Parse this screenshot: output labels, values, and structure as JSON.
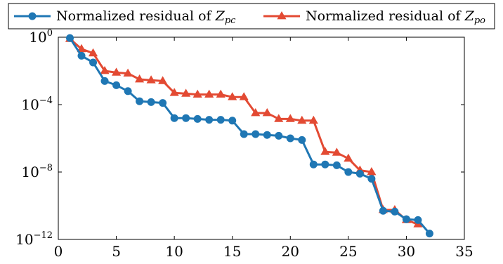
{
  "chart_data": {
    "type": "line",
    "title": "",
    "xlabel": "",
    "ylabel": "",
    "xlim": [
      0,
      35
    ],
    "ylim_log10": [
      -12,
      0
    ],
    "y_scale": "log",
    "grid": false,
    "legend_placement": "top, above plot",
    "x_ticks": [
      0,
      5,
      10,
      15,
      20,
      25,
      30,
      35
    ],
    "y_ticks_exp": [
      0,
      -4,
      -8,
      -12
    ],
    "series": [
      {
        "name_prefix": "Normalized residual of ",
        "name_var": "Z",
        "name_sub": "pc",
        "color": "#1f77b4",
        "marker": "circle",
        "x": [
          1,
          2,
          3,
          4,
          5,
          6,
          7,
          8,
          9,
          10,
          11,
          12,
          13,
          14,
          15,
          16,
          17,
          18,
          19,
          20,
          21,
          22,
          23,
          24,
          25,
          26,
          27,
          28,
          29,
          30,
          31,
          32
        ],
        "log10_y": [
          -0.05,
          -1.1,
          -1.5,
          -2.6,
          -2.85,
          -3.2,
          -3.8,
          -3.85,
          -3.9,
          -4.8,
          -4.8,
          -4.85,
          -4.9,
          -4.9,
          -4.95,
          -5.75,
          -5.75,
          -5.8,
          -5.85,
          -6.0,
          -6.1,
          -7.55,
          -7.55,
          -7.6,
          -8.0,
          -8.1,
          -8.4,
          -10.3,
          -10.35,
          -10.8,
          -10.85,
          -11.65
        ]
      },
      {
        "name_prefix": "Normalized residual of ",
        "name_var": "Z",
        "name_sub": "po",
        "color": "#e34a33",
        "marker": "triangle",
        "x": [
          1,
          2,
          3,
          4,
          5,
          6,
          7,
          8,
          9,
          10,
          11,
          12,
          13,
          14,
          15,
          16,
          17,
          18,
          19,
          20,
          21,
          22,
          23,
          24,
          25,
          26,
          27,
          28,
          29,
          30,
          31
        ],
        "log10_y": [
          -0.1,
          -0.7,
          -0.95,
          -2.0,
          -2.1,
          -2.15,
          -2.5,
          -2.55,
          -2.6,
          -3.3,
          -3.35,
          -3.4,
          -3.4,
          -3.4,
          -3.55,
          -3.55,
          -4.5,
          -4.5,
          -4.85,
          -4.85,
          -4.95,
          -4.95,
          -6.8,
          -6.85,
          -7.2,
          -7.9,
          -8.0,
          -10.25,
          -10.25,
          -10.85,
          -11.1
        ]
      }
    ]
  }
}
